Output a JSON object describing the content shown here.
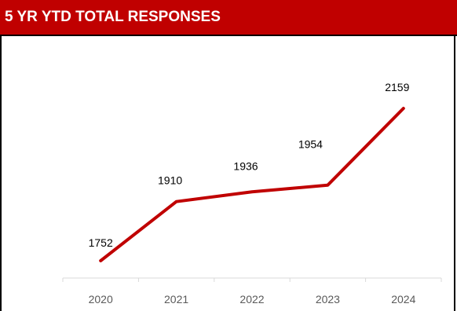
{
  "header": {
    "title": "5 YR YTD TOTAL RESPONSES"
  },
  "colors": {
    "header_bg": "#c00000",
    "line": "#c00000",
    "axis": "#d9d9d9"
  },
  "chart_data": {
    "type": "line",
    "title": "5 YR YTD TOTAL RESPONSES",
    "categories": [
      "2020",
      "2021",
      "2022",
      "2023",
      "2024"
    ],
    "series": [
      {
        "values": [
          1752,
          1910,
          1936,
          1954,
          2159
        ]
      }
    ],
    "data_labels": [
      "1752",
      "1910",
      "1936",
      "1954",
      "2159"
    ],
    "xlabel": "",
    "ylabel": "",
    "grid": false,
    "legend": "none"
  }
}
